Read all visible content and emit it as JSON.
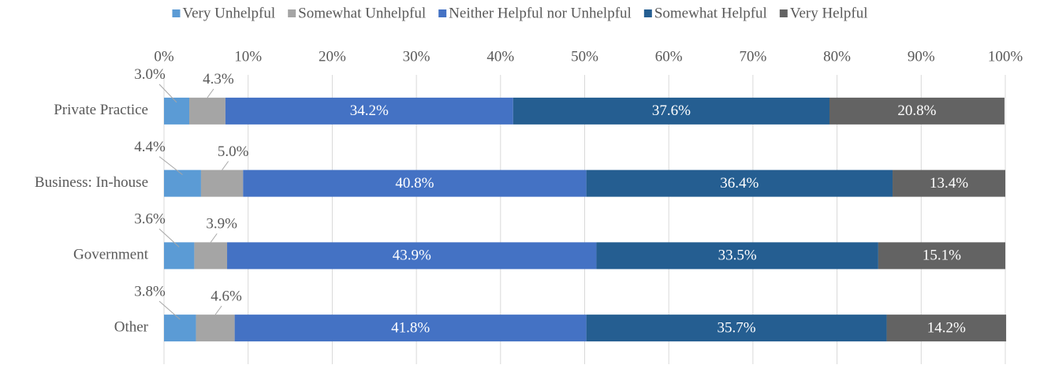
{
  "chart_data": {
    "type": "stacked_bar_horizontal",
    "categories": [
      "Private Practice",
      "Business: In-house",
      "Government",
      "Other"
    ],
    "series": [
      {
        "name": "Very Unhelpful",
        "color": "#5b9bd5",
        "values": [
          3.0,
          4.4,
          3.6,
          3.8
        ],
        "value_labels": [
          "3.0%",
          "4.4%",
          "3.6%",
          "3.8%"
        ]
      },
      {
        "name": "Somewhat Unhelpful",
        "color": "#a5a5a5",
        "values": [
          4.3,
          5.0,
          3.9,
          4.6
        ],
        "value_labels": [
          "4.3%",
          "5.0%",
          "3.9%",
          "4.6%"
        ]
      },
      {
        "name": "Neither Helpful nor Unhelpful",
        "color": "#4472c4",
        "values": [
          34.2,
          40.8,
          43.9,
          41.8
        ],
        "value_labels": [
          "34.2%",
          "40.8%",
          "43.9%",
          "41.8%"
        ]
      },
      {
        "name": "Somewhat Helpful",
        "color": "#255e91",
        "values": [
          37.6,
          36.4,
          33.5,
          35.7
        ],
        "value_labels": [
          "37.6%",
          "36.4%",
          "33.5%",
          "35.7%"
        ]
      },
      {
        "name": "Very Helpful",
        "color": "#636363",
        "values": [
          20.8,
          13.4,
          15.1,
          14.2
        ],
        "value_labels": [
          "20.8%",
          "13.4%",
          "15.1%",
          "14.2%"
        ]
      }
    ],
    "xlim": [
      0,
      100
    ],
    "xticks": [
      {
        "value": 0,
        "label": "0%"
      },
      {
        "value": 10,
        "label": "10%"
      },
      {
        "value": 20,
        "label": "20%"
      },
      {
        "value": 30,
        "label": "30%"
      },
      {
        "value": 40,
        "label": "40%"
      },
      {
        "value": 50,
        "label": "50%"
      },
      {
        "value": 60,
        "label": "60%"
      },
      {
        "value": 70,
        "label": "70%"
      },
      {
        "value": 80,
        "label": "80%"
      },
      {
        "value": 90,
        "label": "90%"
      },
      {
        "value": 100,
        "label": "100%"
      }
    ],
    "grid": true,
    "legend": "top"
  }
}
